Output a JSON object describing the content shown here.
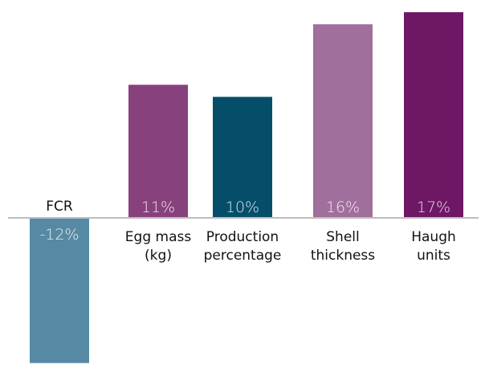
{
  "chart_data": {
    "type": "bar",
    "title": "",
    "xlabel": "",
    "ylabel": "",
    "categories": [
      [
        "FCR"
      ],
      [
        "Egg mass",
        "(kg)"
      ],
      [
        "Production",
        "percentage"
      ],
      [
        "Shell",
        "thickness"
      ],
      [
        "Haugh",
        "units"
      ]
    ],
    "values": [
      -12,
      11,
      10,
      16,
      17
    ],
    "value_labels": [
      "-12%",
      "11%",
      "10%",
      "16%",
      "17%"
    ],
    "colors": [
      "#568aa4",
      "#87417d",
      "#044e6a",
      "#a06f9c",
      "#6e1765"
    ],
    "ylim": [
      -12,
      17
    ],
    "grid": false,
    "legend": "none",
    "axis_color": "#bdbdbd"
  }
}
